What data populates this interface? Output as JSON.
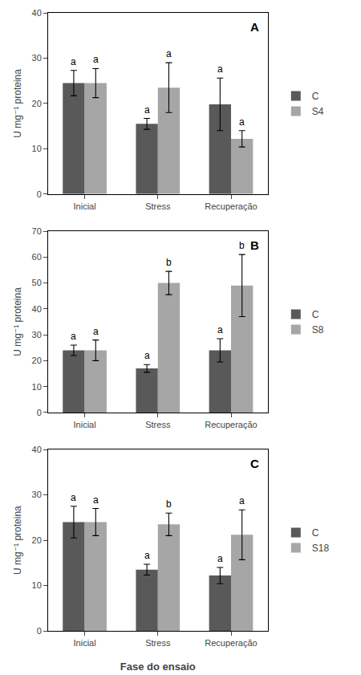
{
  "chart_data": [
    {
      "type": "bar",
      "title": "A",
      "categories": [
        "Inicial",
        "Stress",
        "Recuperação"
      ],
      "series": [
        {
          "name": "C",
          "color": "#595959",
          "values": [
            24.5,
            15.5,
            19.8
          ],
          "errors": [
            2.8,
            1.2,
            5.8
          ],
          "letters": [
            "a",
            "a",
            "a"
          ]
        },
        {
          "name": "S4",
          "color": "#a6a6a6",
          "values": [
            24.5,
            23.5,
            12.2
          ],
          "errors": [
            3.2,
            5.5,
            1.8
          ],
          "letters": [
            "a",
            "a",
            "a"
          ]
        }
      ],
      "ylabel": "U mg⁻¹ proteina",
      "ylim": [
        0,
        40
      ],
      "yticks": [
        0,
        10,
        20,
        30,
        40
      ],
      "grid": false,
      "legend": "right"
    },
    {
      "type": "bar",
      "title": "B",
      "categories": [
        "Inicial",
        "Stress",
        "Recuperação"
      ],
      "series": [
        {
          "name": "C",
          "color": "#595959",
          "values": [
            24.0,
            17.0,
            24.0
          ],
          "errors": [
            2.0,
            1.5,
            4.5
          ],
          "letters": [
            "a",
            "a",
            "a"
          ]
        },
        {
          "name": "S8",
          "color": "#a6a6a6",
          "values": [
            24.0,
            50.0,
            49.0
          ],
          "errors": [
            4.0,
            4.5,
            12.0
          ],
          "letters": [
            "a",
            "b",
            "b"
          ]
        }
      ],
      "ylabel": "U mg⁻¹ proteina",
      "ylim": [
        0,
        70
      ],
      "yticks": [
        0,
        10,
        20,
        30,
        40,
        50,
        60,
        70
      ],
      "grid": false,
      "legend": "right"
    },
    {
      "type": "bar",
      "title": "C",
      "categories": [
        "Inicial",
        "Stress",
        "Recuperação"
      ],
      "series": [
        {
          "name": "C",
          "color": "#595959",
          "values": [
            24.0,
            13.5,
            12.2
          ],
          "errors": [
            3.5,
            1.2,
            1.8
          ],
          "letters": [
            "a",
            "a",
            "a"
          ]
        },
        {
          "name": "S18",
          "color": "#a6a6a6",
          "values": [
            24.0,
            23.5,
            21.2
          ],
          "errors": [
            3.0,
            2.5,
            5.5
          ],
          "letters": [
            "a",
            "b",
            "a"
          ]
        }
      ],
      "xlabel": "Fase do ensaio",
      "ylabel": "U mg⁻¹ proteina",
      "ylim": [
        0,
        40
      ],
      "yticks": [
        0,
        10,
        20,
        30,
        40
      ],
      "grid": false,
      "legend": "right"
    }
  ]
}
